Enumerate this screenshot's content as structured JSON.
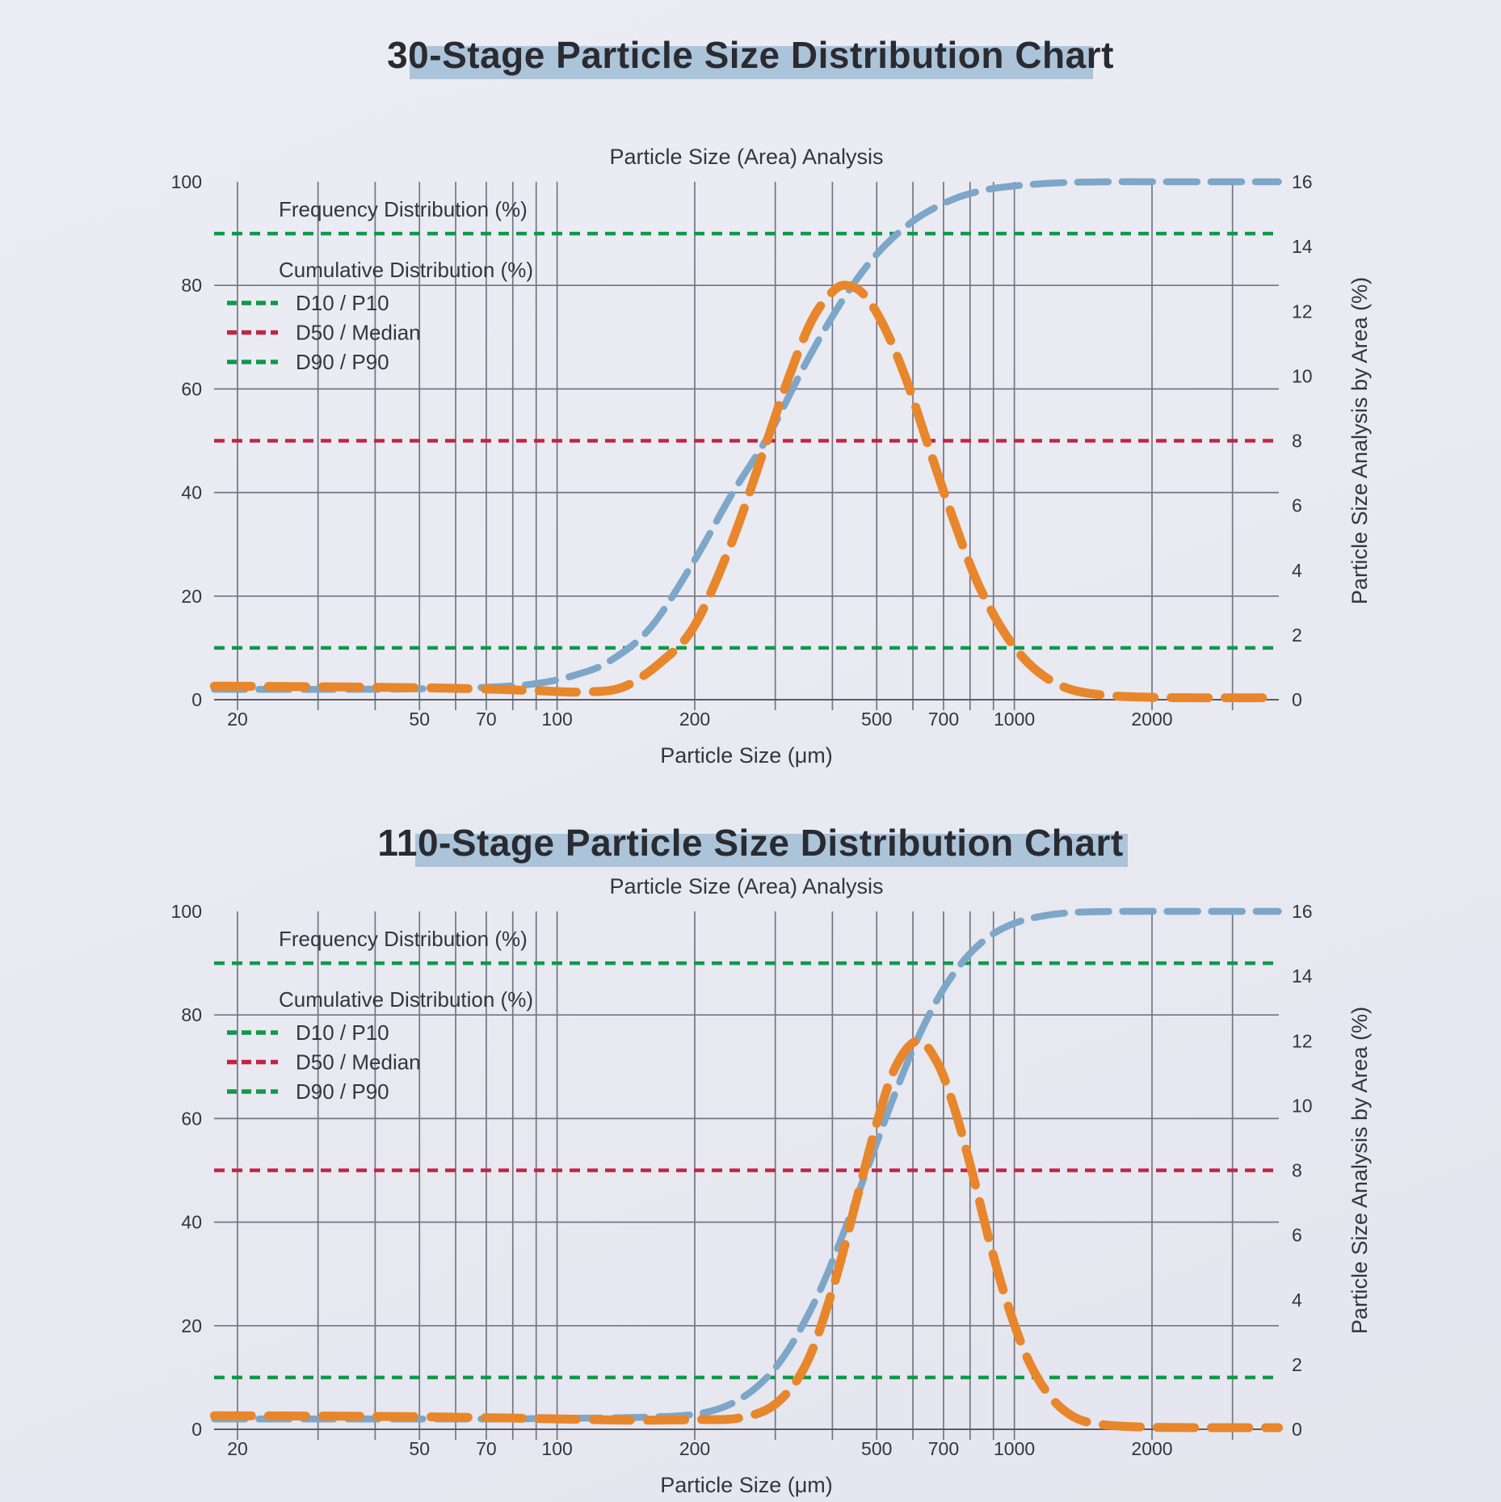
{
  "page": {
    "title_1": "30-Stage Particle Size Distribution Chart",
    "title_2": "110-Stage Particle Size Distribution Chart",
    "background_color": "#e8e9f1",
    "title_highlight_color": "#a6c0d8"
  },
  "colors": {
    "frequency": "#e8862b",
    "cumulative": "#7da6c8",
    "d10_d90": "#11984a",
    "d50": "#c22443",
    "grid": "#74767f",
    "text": "#34363e"
  },
  "legend": {
    "frequency": "Frequency Distribution (%)",
    "cumulative": "Cumulative Distribution (%)",
    "rows": [
      {
        "label": "D10 / P10",
        "color": "#11984a"
      },
      {
        "label": "D50 / Median",
        "color": "#c22443"
      },
      {
        "label": "D90 / P90",
        "color": "#11984a"
      }
    ]
  },
  "chart_data": [
    {
      "type": "line",
      "title": "Particle Size (Area) Analysis",
      "x_axis": {
        "title": "Particle Size (μm)",
        "scale": "log",
        "range": [
          17.8,
          3780
        ],
        "tick_labels": [
          20,
          50,
          70,
          100,
          200,
          500,
          700,
          1000,
          2000
        ],
        "gridlines": [
          20,
          30,
          40,
          50,
          60,
          70,
          80,
          90,
          100,
          200,
          300,
          400,
          500,
          600,
          700,
          800,
          900,
          1000,
          2000,
          3000
        ]
      },
      "y_left_axis": {
        "range": [
          0,
          100
        ],
        "tick_labels": [
          100,
          80,
          60,
          40,
          20,
          0
        ],
        "gridlines": [
          20,
          40,
          60,
          80
        ]
      },
      "y_right_axis": {
        "title": "Particle Size Analysis by Area (%)",
        "range": [
          0,
          16
        ],
        "tick_labels": [
          16,
          14,
          12,
          10,
          8,
          6,
          4,
          2,
          0
        ]
      },
      "reference_lines": [
        {
          "name": "D90 / P90",
          "level": 90,
          "color": "#11984a"
        },
        {
          "name": "D50 / Median",
          "level": 50,
          "color": "#c22443"
        },
        {
          "name": "D10 / P10",
          "level": 10,
          "color": "#11984a"
        }
      ],
      "series": [
        {
          "name": "Cumulative Distribution (%)",
          "axis": "left",
          "color": "#7da6c8",
          "points": [
            [
              17.8,
              2
            ],
            [
              30,
              2
            ],
            [
              50,
              2.1
            ],
            [
              70,
              2.4
            ],
            [
              90,
              3.1
            ],
            [
              110,
              4.8
            ],
            [
              130,
              7.4
            ],
            [
              160,
              13.9
            ],
            [
              200,
              27
            ],
            [
              240,
              39.4
            ],
            [
              290,
              51
            ],
            [
              350,
              65
            ],
            [
              420,
              77
            ],
            [
              500,
              86
            ],
            [
              600,
              92.4
            ],
            [
              720,
              96.3
            ],
            [
              850,
              98.3
            ],
            [
              1000,
              99.2
            ],
            [
              1250,
              99.8
            ],
            [
              1600,
              100
            ],
            [
              2300,
              100
            ],
            [
              3780,
              100
            ]
          ]
        },
        {
          "name": "Frequency Distribution (%)",
          "axis": "right",
          "color": "#e8862b",
          "points": [
            [
              17.8,
              0.42
            ],
            [
              30,
              0.4
            ],
            [
              50,
              0.37
            ],
            [
              70,
              0.33
            ],
            [
              90,
              0.28
            ],
            [
              115,
              0.24
            ],
            [
              140,
              0.4
            ],
            [
              170,
              1.2
            ],
            [
              200,
              2.3
            ],
            [
              240,
              4.8
            ],
            [
              280,
              7.5
            ],
            [
              320,
              9.9
            ],
            [
              360,
              11.7
            ],
            [
              400,
              12.6
            ],
            [
              430,
              12.8
            ],
            [
              470,
              12.5
            ],
            [
              520,
              11.5
            ],
            [
              580,
              9.9
            ],
            [
              650,
              7.8
            ],
            [
              730,
              5.7
            ],
            [
              820,
              3.8
            ],
            [
              920,
              2.4
            ],
            [
              1030,
              1.4
            ],
            [
              1160,
              0.73
            ],
            [
              1320,
              0.33
            ],
            [
              1550,
              0.15
            ],
            [
              1900,
              0.08
            ],
            [
              2500,
              0.06
            ],
            [
              3780,
              0.06
            ]
          ]
        }
      ]
    },
    {
      "type": "line",
      "title": "Particle Size (Area) Analysis",
      "x_axis": {
        "title": "Particle Size (μm)",
        "scale": "log",
        "range": [
          17.8,
          3780
        ],
        "tick_labels": [
          20,
          50,
          70,
          100,
          200,
          500,
          700,
          1000,
          2000
        ],
        "gridlines": [
          20,
          30,
          40,
          50,
          60,
          70,
          80,
          90,
          100,
          200,
          300,
          400,
          500,
          600,
          700,
          800,
          900,
          1000,
          2000,
          3000
        ]
      },
      "y_left_axis": {
        "range": [
          0,
          100
        ],
        "tick_labels": [
          100,
          80,
          60,
          40,
          20,
          0
        ],
        "gridlines": [
          20,
          40,
          60,
          80
        ]
      },
      "y_right_axis": {
        "title": "Particle Size Analysis by Area (%)",
        "range": [
          0,
          16
        ],
        "tick_labels": [
          16,
          14,
          12,
          10,
          8,
          6,
          4,
          2,
          0
        ]
      },
      "reference_lines": [
        {
          "name": "D90 / P90",
          "level": 90,
          "color": "#11984a"
        },
        {
          "name": "D50 / Median",
          "level": 50,
          "color": "#c22443"
        },
        {
          "name": "D10 / P10",
          "level": 10,
          "color": "#11984a"
        }
      ],
      "series": [
        {
          "name": "Cumulative Distribution (%)",
          "axis": "left",
          "color": "#7da6c8",
          "points": [
            [
              17.8,
              2
            ],
            [
              40,
              2
            ],
            [
              70,
              2
            ],
            [
              100,
              2.1
            ],
            [
              150,
              2.3
            ],
            [
              200,
              2.9
            ],
            [
              240,
              4.9
            ],
            [
              280,
              9
            ],
            [
              320,
              15.3
            ],
            [
              370,
              25.5
            ],
            [
              420,
              37.2
            ],
            [
              480,
              51
            ],
            [
              540,
              63.3
            ],
            [
              610,
              74.8
            ],
            [
              690,
              84.1
            ],
            [
              780,
              90.8
            ],
            [
              880,
              95.1
            ],
            [
              1000,
              97.7
            ],
            [
              1150,
              99.1
            ],
            [
              1350,
              99.8
            ],
            [
              1700,
              100
            ],
            [
              2500,
              100
            ],
            [
              3780,
              100
            ]
          ]
        },
        {
          "name": "Frequency Distribution (%)",
          "axis": "right",
          "color": "#e8862b",
          "points": [
            [
              17.8,
              0.42
            ],
            [
              40,
              0.4
            ],
            [
              70,
              0.36
            ],
            [
              110,
              0.31
            ],
            [
              150,
              0.28
            ],
            [
              200,
              0.3
            ],
            [
              250,
              0.35
            ],
            [
              300,
              0.78
            ],
            [
              350,
              2.0
            ],
            [
              400,
              4.3
            ],
            [
              450,
              7.0
            ],
            [
              500,
              9.45
            ],
            [
              550,
              11.2
            ],
            [
              615,
              12.0
            ],
            [
              680,
              11.3
            ],
            [
              740,
              9.9
            ],
            [
              810,
              7.9
            ],
            [
              890,
              5.6
            ],
            [
              980,
              3.6
            ],
            [
              1080,
              2.05
            ],
            [
              1200,
              1.0
            ],
            [
              1350,
              0.38
            ],
            [
              1550,
              0.15
            ],
            [
              1900,
              0.07
            ],
            [
              2600,
              0.05
            ],
            [
              3780,
              0.05
            ]
          ]
        }
      ]
    }
  ]
}
